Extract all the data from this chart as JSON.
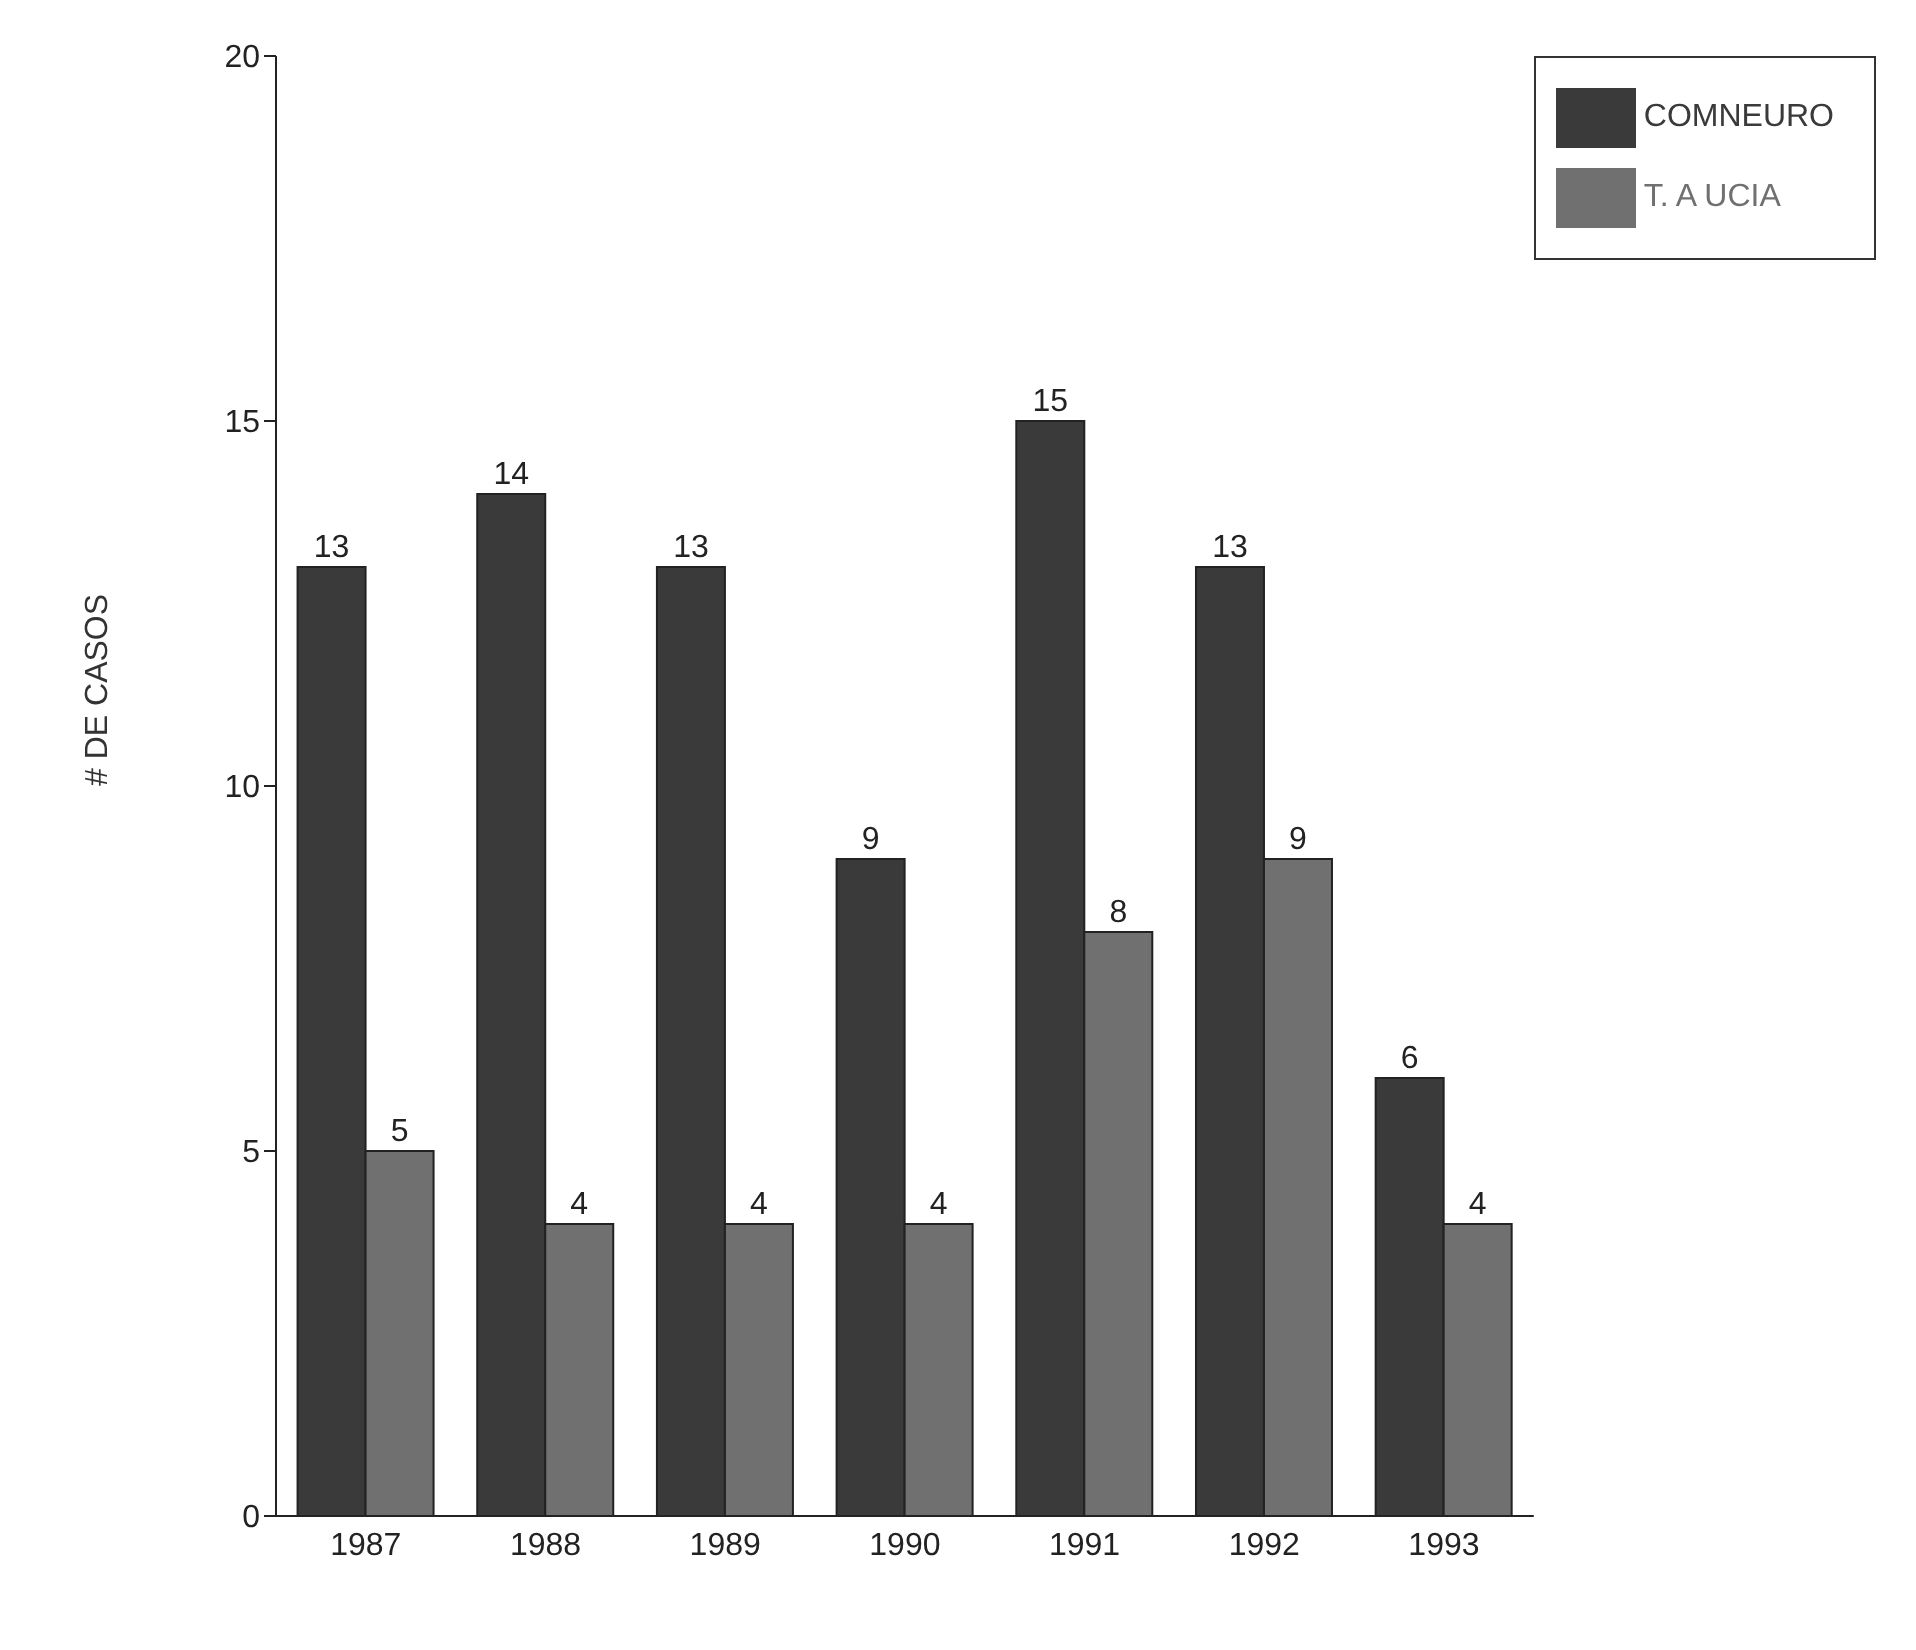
{
  "chart_data": {
    "type": "bar",
    "ylabel": "# DE CASOS",
    "categories": [
      "1987",
      "1988",
      "1989",
      "1990",
      "1991",
      "1992",
      "1993"
    ],
    "series": [
      {
        "name": "COMNEURO",
        "color": "#3a3a3a",
        "values": [
          13,
          14,
          13,
          9,
          15,
          13,
          6
        ]
      },
      {
        "name": "T. A UCIA",
        "color": "#707070",
        "values": [
          5,
          4,
          4,
          4,
          8,
          9,
          4
        ]
      }
    ],
    "ylim": [
      0,
      20
    ],
    "yticks": [
      0,
      5,
      10,
      15,
      20
    ],
    "grid": false,
    "legend": "top right",
    "data_labels": true
  }
}
